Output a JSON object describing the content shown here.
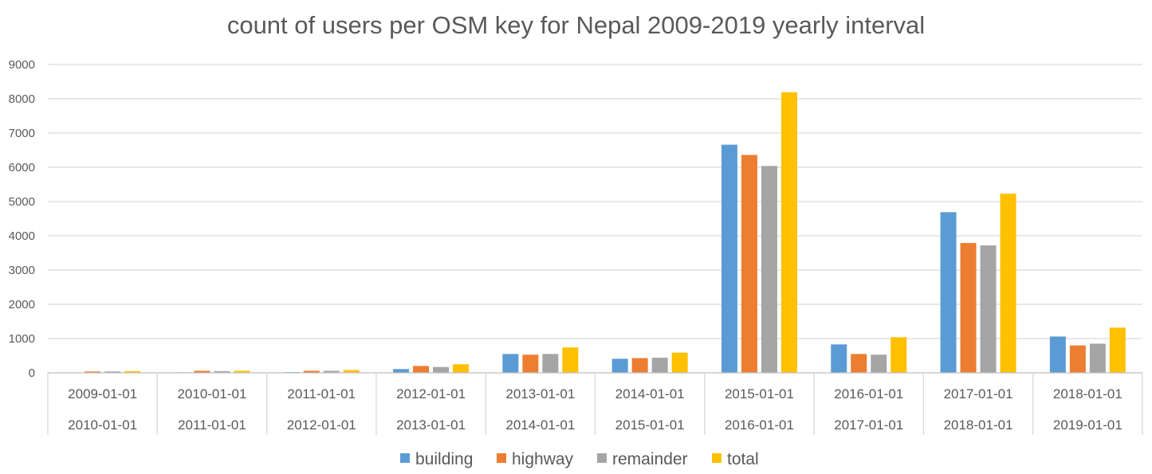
{
  "chart_data": {
    "type": "bar",
    "title": "count of users per OSM key for Nepal 2009-2019 yearly interval",
    "xlabel": "",
    "ylabel": "",
    "ylim": [
      0,
      9000
    ],
    "yticks": [
      0,
      1000,
      2000,
      3000,
      4000,
      5000,
      6000,
      7000,
      8000,
      9000
    ],
    "grid": true,
    "legend_position": "bottom",
    "categories": [
      [
        "2009-01-01",
        "2010-01-01"
      ],
      [
        "2010-01-01",
        "2011-01-01"
      ],
      [
        "2011-01-01",
        "2012-01-01"
      ],
      [
        "2012-01-01",
        "2013-01-01"
      ],
      [
        "2013-01-01",
        "2014-01-01"
      ],
      [
        "2014-01-01",
        "2015-01-01"
      ],
      [
        "2015-01-01",
        "2016-01-01"
      ],
      [
        "2016-01-01",
        "2017-01-01"
      ],
      [
        "2017-01-01",
        "2018-01-01"
      ],
      [
        "2018-01-01",
        "2019-01-01"
      ]
    ],
    "series": [
      {
        "name": "building",
        "color": "#5B9BD5",
        "values": [
          10,
          15,
          20,
          110,
          550,
          410,
          6660,
          830,
          4690,
          1060
        ]
      },
      {
        "name": "highway",
        "color": "#ED7D31",
        "values": [
          40,
          60,
          60,
          200,
          530,
          430,
          6360,
          550,
          3790,
          800
        ]
      },
      {
        "name": "remainder",
        "color": "#A5A5A5",
        "values": [
          40,
          50,
          60,
          170,
          550,
          440,
          6040,
          530,
          3720,
          850
        ]
      },
      {
        "name": "total",
        "color": "#FFC000",
        "values": [
          50,
          60,
          80,
          250,
          740,
          590,
          8190,
          1040,
          5230,
          1320
        ]
      }
    ]
  }
}
